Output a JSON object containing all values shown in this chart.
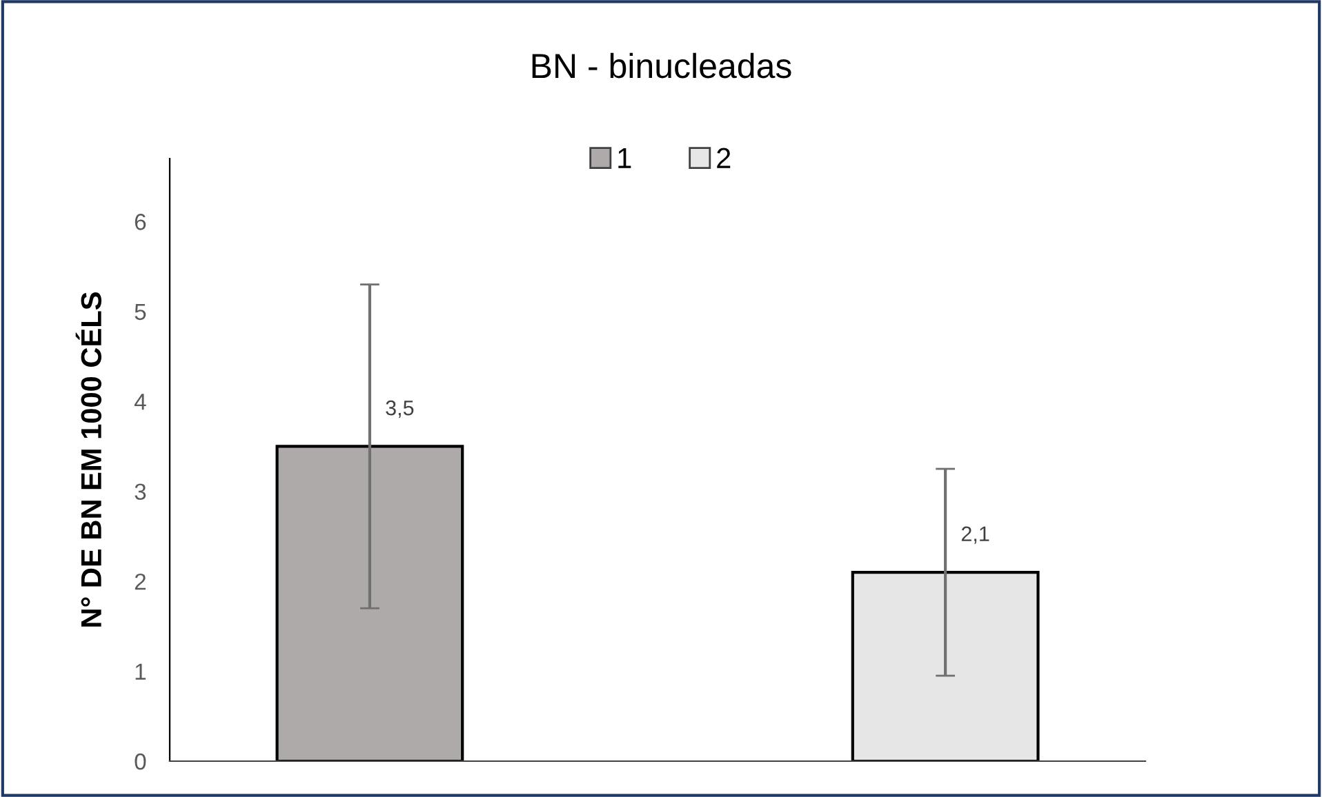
{
  "chart_data": {
    "type": "bar",
    "title": "BN - binucleadas",
    "ylabel": "N° DE BN EM 1000 CÉLS",
    "categories": [
      null
    ],
    "series": [
      {
        "name": "1",
        "color": "#aeaaaa",
        "values": [
          3.5
        ],
        "errors": [
          1.8
        ],
        "value_labels": [
          "3,5"
        ]
      },
      {
        "name": "2",
        "color": "#e7e6e6",
        "values": [
          2.1
        ],
        "errors": [
          1.15
        ],
        "value_labels": [
          "2,1"
        ]
      }
    ],
    "ylim": [
      0,
      6.7
    ],
    "yticks": [
      0,
      1,
      2,
      3,
      4,
      5,
      6
    ],
    "grid": false,
    "legend": "top"
  }
}
